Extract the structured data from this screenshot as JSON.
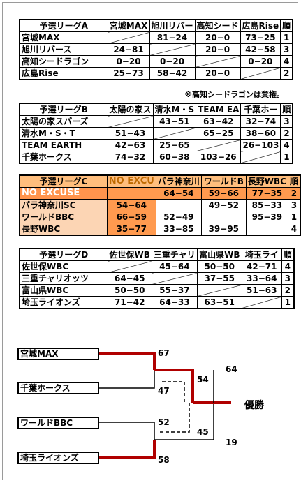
{
  "leagues": [
    {
      "id": "A",
      "title": "予選リーグA",
      "headers": [
        "宮城MAX",
        "旭川リバー",
        "高知シード",
        "広島Rise"
      ],
      "rank_label": "順",
      "teams": [
        {
          "name": "宮城MAX",
          "scores": [
            "",
            "81−24",
            "20−0",
            "73−25"
          ],
          "rank": "1"
        },
        {
          "name": "旭川リバース",
          "scores": [
            "24−81",
            "",
            "20−0",
            "42−58"
          ],
          "rank": "3"
        },
        {
          "name": "高知シードラゴン",
          "scores": [
            "0−20",
            "0−20",
            "",
            "0−20"
          ],
          "rank": "4"
        },
        {
          "name": "広島Rise",
          "scores": [
            "25−73",
            "58−42",
            "20−0",
            ""
          ],
          "rank": "2"
        }
      ],
      "note": "※高知シードラゴンは棄権。"
    },
    {
      "id": "B",
      "title": "予選リーグB",
      "headers": [
        "太陽の家ス",
        "清水M・S",
        "TEAM EA",
        "千葉ホー"
      ],
      "rank_label": "順",
      "teams": [
        {
          "name": "太陽の家スパーズ",
          "scores": [
            "",
            "43−51",
            "63−42",
            "32−74"
          ],
          "rank": "3"
        },
        {
          "name": "清水M・S・T",
          "scores": [
            "51−43",
            "",
            "65−25",
            "38−60"
          ],
          "rank": "2"
        },
        {
          "name": "TEAM EARTH",
          "scores": [
            "42−63",
            "25−65",
            "",
            "26−103"
          ],
          "rank": "4"
        },
        {
          "name": "千葉ホークス",
          "scores": [
            "74−32",
            "60−38",
            "103−26",
            ""
          ],
          "rank": "1"
        }
      ]
    },
    {
      "id": "C",
      "title": "予選リーグC",
      "headers": [
        "NO EXCU",
        "パラ神奈川",
        "ワールドB",
        "長野WBC"
      ],
      "rank_label": "順",
      "teams": [
        {
          "name": "NO EXCUSE",
          "scores": [
            "",
            "64−54",
            "59−66",
            "77−35"
          ],
          "rank": "2"
        },
        {
          "name": "パラ神奈川SC",
          "scores": [
            "54−64",
            "",
            "49−52",
            "85−33"
          ],
          "rank": "3"
        },
        {
          "name": "ワールドBBC",
          "scores": [
            "66−59",
            "52−49",
            "",
            "95−39"
          ],
          "rank": "1"
        },
        {
          "name": "長野WBC",
          "scores": [
            "35−77",
            "33−85",
            "39−95",
            ""
          ],
          "rank": "4"
        }
      ]
    },
    {
      "id": "D",
      "title": "予選リーグD",
      "headers": [
        "佐世保WB",
        "三重チャリ",
        "富山県WB",
        "埼玉ライ"
      ],
      "rank_label": "順",
      "teams": [
        {
          "name": "佐世保WBC",
          "scores": [
            "",
            "45−64",
            "50−50",
            "42−71"
          ],
          "rank": "4"
        },
        {
          "name": "三重チャリオッツ",
          "scores": [
            "64−45",
            "",
            "37−55",
            "33−64"
          ],
          "rank": "3"
        },
        {
          "name": "富山県WBC",
          "scores": [
            "50−50",
            "55−37",
            "",
            "51−63"
          ],
          "rank": "2"
        },
        {
          "name": "埼玉ライオンズ",
          "scores": [
            "71−42",
            "64−33",
            "63−51",
            ""
          ],
          "rank": "1"
        }
      ]
    }
  ],
  "tournament": {
    "teams": [
      "宮城MAX",
      "千葉ホークス",
      "ワールドBBC",
      "埼玉ライオンズ"
    ],
    "scores": {
      "semi1_top": "67",
      "semi1_bottom": "47",
      "semi2_top": "52",
      "semi2_bottom": "58",
      "final_top_in": "54",
      "final_bottom_in": "45",
      "final_top": "64",
      "final_bottom": "19"
    },
    "winner_label": "優勝"
  },
  "colors": {
    "winner_line": "#b00000",
    "league_c_header": "#ffbe7d",
    "league_c_team": "#fcd5b4",
    "league_c_highlight": "#ff944d"
  }
}
